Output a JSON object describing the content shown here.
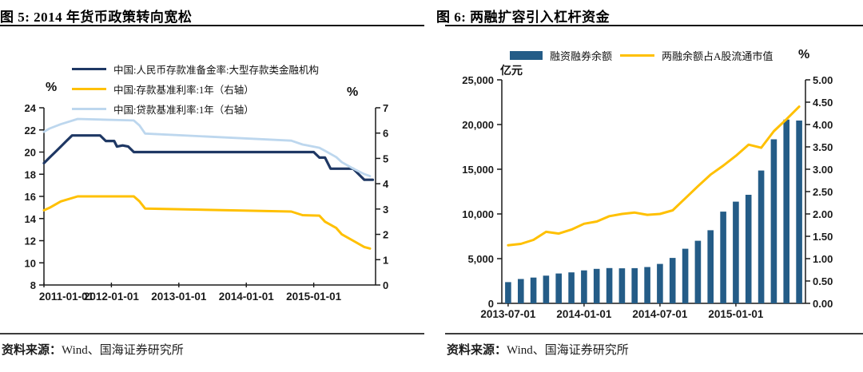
{
  "source": {
    "label": "资料来源：",
    "text": "Wind、国海证券研究所"
  },
  "colors": {
    "navy_line": "#1F3864",
    "gold_line": "#FFC000",
    "light_blue_line": "#BDD7EE",
    "bar_blue": "#245C87",
    "axis": "#1a1a1a",
    "rule": "#3d3d3d"
  },
  "chart_data": [
    {
      "id": "fig5",
      "type": "line",
      "title": "图 5: 2014 年货币政策转向宽松",
      "unit_left": "%",
      "unit_right": "%",
      "left_axis": {
        "min": 8,
        "max": 24,
        "ticks": [
          {
            "v": 24,
            "label": "24"
          },
          {
            "v": 22,
            "label": "22"
          },
          {
            "v": 20,
            "label": "20"
          },
          {
            "v": 18,
            "label": "18"
          },
          {
            "v": 16,
            "label": "16"
          },
          {
            "v": 14,
            "label": "14"
          },
          {
            "v": 12,
            "label": "12"
          },
          {
            "v": 10,
            "label": "10"
          },
          {
            "v": 8,
            "label": "8"
          }
        ]
      },
      "right_axis": {
        "min": 0,
        "max": 7,
        "ticks": [
          {
            "v": 7,
            "label": "7"
          },
          {
            "v": 6,
            "label": "6"
          },
          {
            "v": 5,
            "label": "5"
          },
          {
            "v": 4,
            "label": "4"
          },
          {
            "v": 3,
            "label": "3"
          },
          {
            "v": 2,
            "label": "2"
          },
          {
            "v": 1,
            "label": "1"
          },
          {
            "v": 0,
            "label": "0"
          }
        ]
      },
      "x_axis": {
        "domain_months": [
          0,
          59
        ],
        "ticks": [
          {
            "m": 0,
            "label": "2011-01-01"
          },
          {
            "m": 12,
            "label": "2012-01-01"
          },
          {
            "m": 24,
            "label": "2013-01-01"
          },
          {
            "m": 36,
            "label": "2014-01-01"
          },
          {
            "m": 48,
            "label": "2015-01-01"
          }
        ]
      },
      "series": [
        {
          "name": "中国:人民币存款准备金率:大型存款类金融机构",
          "axis": "left",
          "color": "#1F3864",
          "width": 3.2,
          "points": [
            [
              0,
              19
            ],
            [
              1,
              19.5
            ],
            [
              2,
              20
            ],
            [
              3,
              20.5
            ],
            [
              4,
              21
            ],
            [
              5,
              21.5
            ],
            [
              10,
              21.5
            ],
            [
              11,
              21
            ],
            [
              12.5,
              21
            ],
            [
              13,
              20.5
            ],
            [
              14,
              20.6
            ],
            [
              15,
              20.5
            ],
            [
              16,
              20
            ],
            [
              48,
              20
            ],
            [
              49,
              19.5
            ],
            [
              50,
              19.5
            ],
            [
              51,
              18.5
            ],
            [
              55,
              18.5
            ],
            [
              56,
              18
            ],
            [
              57,
              17.5
            ],
            [
              58.5,
              17.5
            ]
          ]
        },
        {
          "name": "中国:存款基准利率:1年（右轴）",
          "axis": "right",
          "color": "#FFC000",
          "width": 3,
          "points": [
            [
              0,
              2.95
            ],
            [
              1,
              3.05
            ],
            [
              3,
              3.3
            ],
            [
              6,
              3.5
            ],
            [
              16,
              3.5
            ],
            [
              17,
              3.3
            ],
            [
              18,
              3.02
            ],
            [
              44,
              2.9
            ],
            [
              46,
              2.76
            ],
            [
              49,
              2.74
            ],
            [
              50,
              2.5
            ],
            [
              52,
              2.25
            ],
            [
              53,
              2.0
            ],
            [
              55,
              1.75
            ],
            [
              57,
              1.5
            ],
            [
              58,
              1.44
            ]
          ]
        },
        {
          "name": "中国:贷款基准利率:1年（右轴）",
          "axis": "right",
          "color": "#BDD7EE",
          "width": 2.8,
          "points": [
            [
              0,
              6.05
            ],
            [
              1,
              6.18
            ],
            [
              3,
              6.35
            ],
            [
              6,
              6.56
            ],
            [
              16,
              6.5
            ],
            [
              17,
              6.3
            ],
            [
              18,
              5.98
            ],
            [
              44,
              5.7
            ],
            [
              46,
              5.55
            ],
            [
              49,
              5.42
            ],
            [
              50,
              5.3
            ],
            [
              52,
              5.05
            ],
            [
              53,
              4.85
            ],
            [
              55,
              4.6
            ],
            [
              57,
              4.38
            ],
            [
              58,
              4.3
            ]
          ]
        }
      ]
    },
    {
      "id": "fig6",
      "type": "bar",
      "title": "图 6: 两融扩容引入杠杆资金",
      "unit_left": "亿元",
      "unit_right": "%",
      "left_axis": {
        "min": 0,
        "max": 25000,
        "ticks": [
          {
            "v": 25000,
            "label": "25,000"
          },
          {
            "v": 20000,
            "label": "20,000"
          },
          {
            "v": 15000,
            "label": "15,000"
          },
          {
            "v": 10000,
            "label": "10,000"
          },
          {
            "v": 5000,
            "label": "5,000"
          },
          {
            "v": 0,
            "label": "0"
          }
        ]
      },
      "right_axis": {
        "min": 0,
        "max": 5,
        "ticks": [
          {
            "v": 5,
            "label": "5.00"
          },
          {
            "v": 4.5,
            "label": "4.50"
          },
          {
            "v": 4,
            "label": "4.00"
          },
          {
            "v": 3.5,
            "label": "3.50"
          },
          {
            "v": 3,
            "label": "3.00"
          },
          {
            "v": 2.5,
            "label": "2.50"
          },
          {
            "v": 2,
            "label": "2.00"
          },
          {
            "v": 1.5,
            "label": "1.50"
          },
          {
            "v": 1,
            "label": "1.00"
          },
          {
            "v": 0.5,
            "label": "0.50"
          },
          {
            "v": 0,
            "label": "0.00"
          }
        ]
      },
      "categories": [
        "2013-07",
        "2013-08",
        "2013-09",
        "2013-10",
        "2013-11",
        "2013-12",
        "2014-01",
        "2014-02",
        "2014-03",
        "2014-04",
        "2014-05",
        "2014-06",
        "2014-07",
        "2014-08",
        "2014-09",
        "2014-10",
        "2014-11",
        "2014-12",
        "2015-01",
        "2015-02",
        "2015-03",
        "2015-04",
        "2015-05",
        "2015-06"
      ],
      "x_axis": {
        "ticks": [
          {
            "i": 0,
            "label": "2013-07-01"
          },
          {
            "i": 6,
            "label": "2014-01-01"
          },
          {
            "i": 12,
            "label": "2014-07-01"
          },
          {
            "i": 18,
            "label": "2015-01-01"
          }
        ]
      },
      "series": [
        {
          "name": "融资融券余额",
          "kind": "bar",
          "axis": "left",
          "color": "#245C87",
          "values": [
            2373,
            2721,
            2886,
            3094,
            3337,
            3465,
            3687,
            3856,
            3950,
            3917,
            3935,
            4064,
            4410,
            5078,
            6111,
            7001,
            8182,
            10256,
            11375,
            12146,
            14858,
            18345,
            20557,
            20443
          ]
        },
        {
          "name": "两融余额占A股流通市值",
          "kind": "line",
          "axis": "right",
          "color": "#FFC000",
          "width": 3,
          "values": [
            1.3,
            1.33,
            1.42,
            1.6,
            1.56,
            1.65,
            1.78,
            1.83,
            1.95,
            2.0,
            2.03,
            1.98,
            2.0,
            2.08,
            2.35,
            2.62,
            2.88,
            3.08,
            3.3,
            3.55,
            3.48,
            3.85,
            4.12,
            4.4
          ]
        }
      ]
    }
  ]
}
